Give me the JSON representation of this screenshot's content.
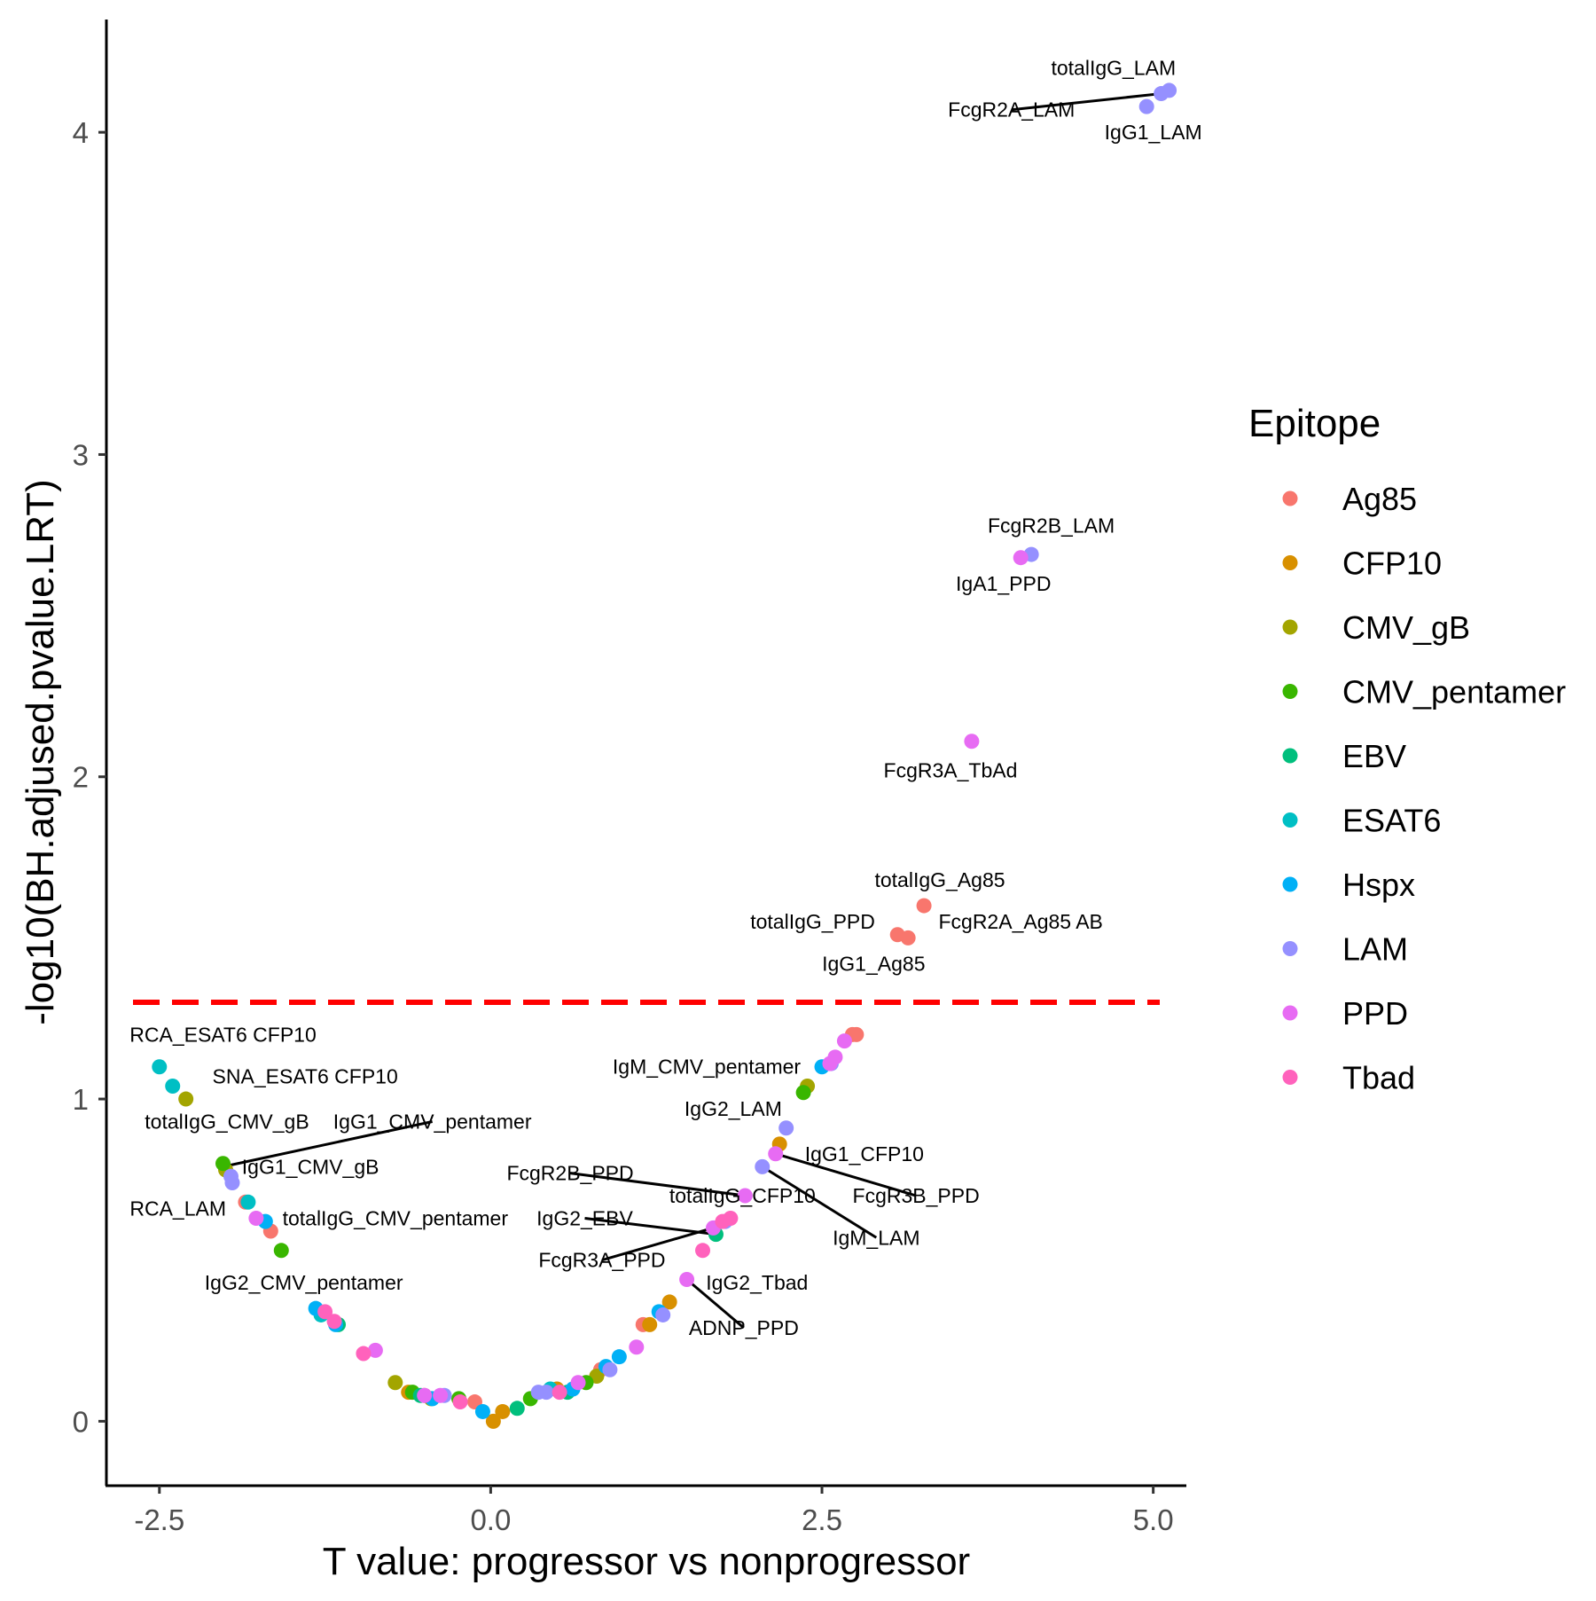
{
  "chart_data": {
    "type": "scatter",
    "title": "",
    "xlabel": "T value: progressor vs nonprogressor",
    "ylabel": "-log10(BH.adjused.pvalue.LRT)",
    "xlim": [
      -2.9,
      5.25
    ],
    "ylim": [
      -0.2,
      4.35
    ],
    "x_ticks": [
      -2.5,
      0.0,
      2.5,
      5.0
    ],
    "x_tick_labels": [
      "-2.5",
      "0.0",
      "2.5",
      "5.0"
    ],
    "y_ticks": [
      0,
      1,
      2,
      3,
      4
    ],
    "y_tick_labels": [
      "0",
      "1",
      "2",
      "3",
      "4"
    ],
    "grid": false,
    "threshold_line": {
      "y": 1.3,
      "color": "#FF0000",
      "style": "dashed"
    },
    "legend": {
      "title": "Epitope",
      "position": "right",
      "entries": [
        {
          "name": "Ag85",
          "color": "#F8766D"
        },
        {
          "name": "CFP10",
          "color": "#D89000"
        },
        {
          "name": "CMV_gB",
          "color": "#A3A500"
        },
        {
          "name": "CMV_pentamer",
          "color": "#39B600"
        },
        {
          "name": "EBV",
          "color": "#00BF7D"
        },
        {
          "name": "ESAT6",
          "color": "#00BFC4"
        },
        {
          "name": "Hspx",
          "color": "#00B0F6"
        },
        {
          "name": "LAM",
          "color": "#9590FF"
        },
        {
          "name": "PPD",
          "color": "#E76BF3"
        },
        {
          "name": "Tbad",
          "color": "#FF62BC"
        }
      ]
    },
    "series": [
      {
        "name": "Ag85",
        "points": [
          [
            3.27,
            1.6
          ],
          [
            3.07,
            1.51
          ],
          [
            3.15,
            1.5
          ],
          [
            2.73,
            1.2
          ],
          [
            2.76,
            1.2
          ],
          [
            -1.85,
            0.68
          ],
          [
            -1.66,
            0.59
          ],
          [
            -0.12,
            0.06
          ],
          [
            -0.5,
            0.08
          ],
          [
            1.15,
            0.3
          ],
          [
            0.83,
            0.16
          ]
        ]
      },
      {
        "name": "CFP10",
        "points": [
          [
            2.18,
            0.86
          ],
          [
            1.35,
            0.37
          ],
          [
            1.2,
            0.3
          ],
          [
            0.09,
            0.03
          ],
          [
            0.02,
            0.0
          ],
          [
            -0.62,
            0.09
          ],
          [
            0.5,
            0.1
          ]
        ]
      },
      {
        "name": "CMV_gB",
        "points": [
          [
            -2.3,
            1.0
          ],
          [
            -2.0,
            0.78
          ],
          [
            2.39,
            1.04
          ],
          [
            -0.72,
            0.12
          ],
          [
            0.8,
            0.14
          ],
          [
            -0.45,
            0.07
          ]
        ]
      },
      {
        "name": "CMV_pentamer",
        "points": [
          [
            -2.02,
            0.8
          ],
          [
            -1.58,
            0.53
          ],
          [
            2.36,
            1.02
          ],
          [
            -0.24,
            0.07
          ],
          [
            -0.59,
            0.09
          ],
          [
            0.3,
            0.07
          ],
          [
            0.72,
            0.12
          ]
        ]
      },
      {
        "name": "EBV",
        "points": [
          [
            1.7,
            0.58
          ],
          [
            -1.15,
            0.3
          ],
          [
            0.2,
            0.04
          ],
          [
            -0.53,
            0.08
          ],
          [
            0.58,
            0.09
          ]
        ]
      },
      {
        "name": "ESAT6",
        "points": [
          [
            -2.5,
            1.1
          ],
          [
            -2.4,
            1.04
          ],
          [
            -1.83,
            0.68
          ],
          [
            -1.28,
            0.33
          ],
          [
            0.45,
            0.1
          ]
        ]
      },
      {
        "name": "Hspx",
        "points": [
          [
            -1.7,
            0.62
          ],
          [
            -1.32,
            0.35
          ],
          [
            2.5,
            1.1
          ],
          [
            -0.06,
            0.03
          ],
          [
            0.97,
            0.2
          ],
          [
            -1.17,
            0.3
          ],
          [
            1.27,
            0.34
          ],
          [
            0.62,
            0.1
          ],
          [
            0.87,
            0.17
          ],
          [
            -0.44,
            0.07
          ]
        ]
      },
      {
        "name": "LAM",
        "points": [
          [
            5.06,
            4.12
          ],
          [
            5.12,
            4.13
          ],
          [
            4.95,
            4.08
          ],
          [
            4.08,
            2.69
          ],
          [
            -1.96,
            0.76
          ],
          [
            -1.95,
            0.74
          ],
          [
            2.23,
            0.91
          ],
          [
            2.05,
            0.79
          ],
          [
            2.57,
            1.11
          ],
          [
            1.77,
            0.62
          ],
          [
            0.36,
            0.09
          ],
          [
            -0.35,
            0.08
          ],
          [
            1.3,
            0.33
          ],
          [
            0.42,
            0.09
          ],
          [
            0.9,
            0.16
          ]
        ]
      },
      {
        "name": "PPD",
        "points": [
          [
            4.0,
            2.68
          ],
          [
            3.63,
            2.11
          ],
          [
            1.92,
            0.7
          ],
          [
            2.15,
            0.83
          ],
          [
            1.48,
            0.44
          ],
          [
            -1.77,
            0.63
          ],
          [
            2.67,
            1.18
          ],
          [
            2.6,
            1.13
          ],
          [
            2.56,
            1.11
          ],
          [
            1.68,
            0.6
          ],
          [
            -0.5,
            0.08
          ],
          [
            -0.38,
            0.08
          ],
          [
            1.1,
            0.23
          ],
          [
            -0.87,
            0.22
          ],
          [
            0.66,
            0.12
          ]
        ]
      },
      {
        "name": "Tbad",
        "points": [
          [
            1.6,
            0.53
          ],
          [
            1.81,
            0.63
          ],
          [
            -1.25,
            0.34
          ],
          [
            -0.96,
            0.21
          ],
          [
            -1.18,
            0.31
          ],
          [
            1.75,
            0.62
          ],
          [
            -0.23,
            0.06
          ],
          [
            0.52,
            0.09
          ]
        ]
      }
    ],
    "annotations": [
      {
        "text": "totalIgG_LAM",
        "x": 4.7,
        "y": 4.2,
        "anchor": "middle"
      },
      {
        "text": "FcgR2A_LAM",
        "x": 3.93,
        "y": 4.07,
        "anchor": "middle",
        "leader_to": [
          5.06,
          4.12
        ]
      },
      {
        "text": "IgG1_LAM",
        "x": 5.0,
        "y": 4.0,
        "anchor": "middle"
      },
      {
        "text": "FcgR2B_LAM",
        "x": 4.23,
        "y": 2.78,
        "anchor": "middle"
      },
      {
        "text": "IgA1_PPD",
        "x": 3.87,
        "y": 2.6,
        "anchor": "middle"
      },
      {
        "text": "FcgR3A_TbAd",
        "x": 3.47,
        "y": 2.02,
        "anchor": "middle"
      },
      {
        "text": "totalIgG_Ag85",
        "x": 3.39,
        "y": 1.68,
        "anchor": "middle"
      },
      {
        "text": "totalIgG_PPD",
        "x": 2.43,
        "y": 1.55,
        "anchor": "middle"
      },
      {
        "text": "FcgR2A_Ag85 AB",
        "x": 4.0,
        "y": 1.55,
        "anchor": "middle"
      },
      {
        "text": "IgG1_Ag85",
        "x": 2.89,
        "y": 1.42,
        "anchor": "middle"
      },
      {
        "text": "RCA_ESAT6 CFP10",
        "x": -2.02,
        "y": 1.2,
        "anchor": "middle"
      },
      {
        "text": "SNA_ESAT6 CFP10",
        "x": -1.4,
        "y": 1.07,
        "anchor": "middle"
      },
      {
        "text": "totalIgG_CMV_gB",
        "x": -1.99,
        "y": 0.93,
        "anchor": "middle"
      },
      {
        "text": "IgG1_CMV_pentamer",
        "x": -0.44,
        "y": 0.93,
        "anchor": "middle",
        "leader_to": [
          -2.02,
          0.79
        ]
      },
      {
        "text": "IgG1_CMV_gB",
        "x": -1.36,
        "y": 0.79,
        "anchor": "middle"
      },
      {
        "text": "RCA_LAM",
        "x": -2.36,
        "y": 0.66,
        "anchor": "middle"
      },
      {
        "text": "totalIgG_CMV_pentamer",
        "x": -0.72,
        "y": 0.63,
        "anchor": "middle"
      },
      {
        "text": "IgG2_CMV_pentamer",
        "x": -1.41,
        "y": 0.43,
        "anchor": "middle"
      },
      {
        "text": "IgM_CMV_pentamer",
        "x": 1.63,
        "y": 1.1,
        "anchor": "middle"
      },
      {
        "text": "IgG2_LAM",
        "x": 1.83,
        "y": 0.97,
        "anchor": "middle"
      },
      {
        "text": "IgG1_CFP10",
        "x": 2.82,
        "y": 0.83,
        "anchor": "middle"
      },
      {
        "text": "FcgR2B_PPD",
        "x": 0.6,
        "y": 0.77,
        "anchor": "middle",
        "leader_to": [
          1.92,
          0.7
        ]
      },
      {
        "text": "totalIgG_CFP10",
        "x": 1.9,
        "y": 0.7,
        "anchor": "middle"
      },
      {
        "text": "FcgR3B_PPD",
        "x": 3.21,
        "y": 0.7,
        "anchor": "middle",
        "leader_to": [
          2.15,
          0.83
        ]
      },
      {
        "text": "IgG2_EBV",
        "x": 0.71,
        "y": 0.63,
        "anchor": "middle",
        "leader_to": [
          1.7,
          0.58
        ]
      },
      {
        "text": "IgM_LAM",
        "x": 2.91,
        "y": 0.57,
        "anchor": "middle",
        "leader_to": [
          2.05,
          0.79
        ]
      },
      {
        "text": "FcgR3A_PPD",
        "x": 0.84,
        "y": 0.5,
        "anchor": "middle",
        "leader_to": [
          1.68,
          0.6
        ]
      },
      {
        "text": "IgG2_Tbad",
        "x": 2.01,
        "y": 0.43,
        "anchor": "middle"
      },
      {
        "text": "ADNP_PPD",
        "x": 1.91,
        "y": 0.29,
        "anchor": "middle",
        "leader_to": [
          1.48,
          0.44
        ]
      }
    ]
  }
}
